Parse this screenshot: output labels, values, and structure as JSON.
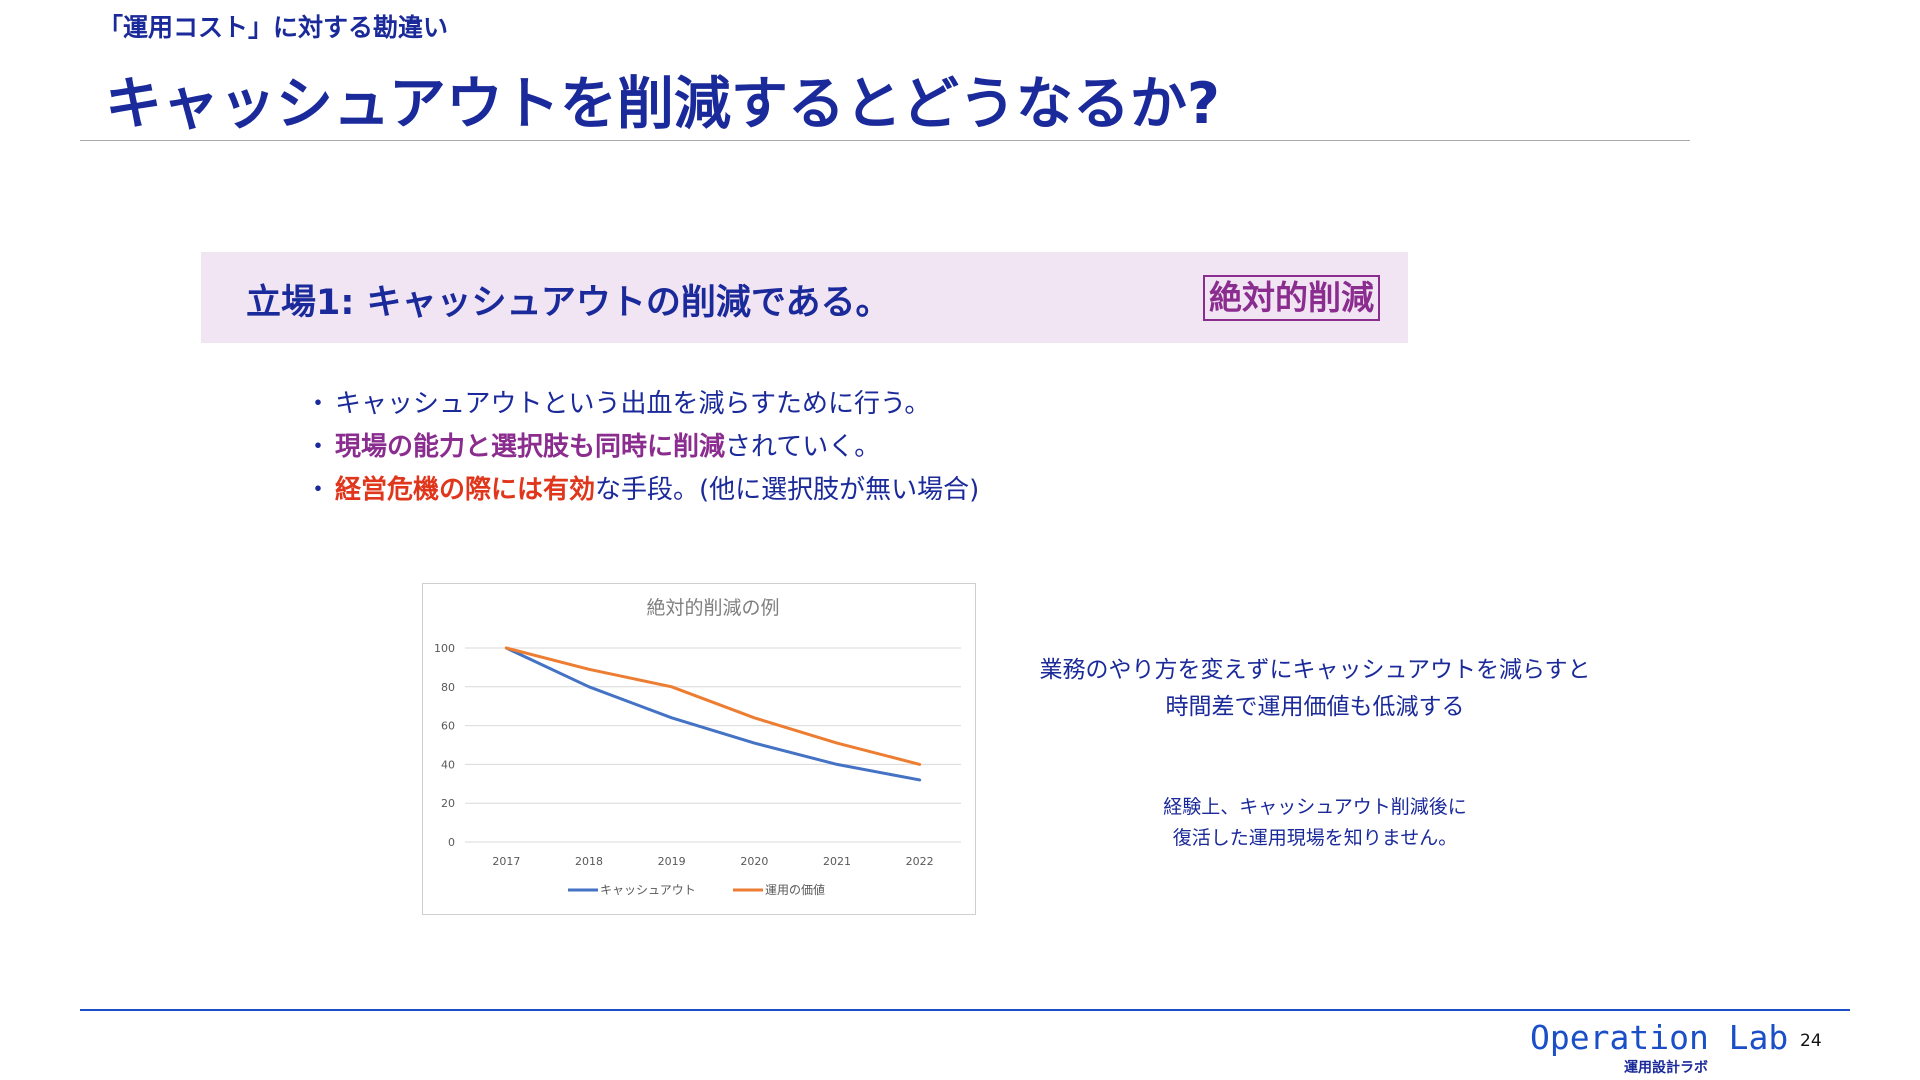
{
  "header": {
    "subtitle": "「運用コスト」に対する勘違い",
    "title": "キャッシュアウトを削減するとどうなるか?"
  },
  "banner": {
    "text": "立場1: キャッシュアウトの削減である。",
    "badge": "絶対的削減"
  },
  "bullets": [
    {
      "plain": "キャッシュアウトという出血を減らすために行う。"
    },
    {
      "highlight": "現場の能力と選択肢も同時に削減",
      "rest": "されていく。"
    },
    {
      "highlight": "経営危機の際には有効",
      "rest": "な手段。(他に選択肢が無い場合)"
    }
  ],
  "notes": {
    "note1_line1": "業務のやり方を変えずにキャッシュアウトを減らすと",
    "note1_line2": "時間差で運用価値も低減する",
    "note2_line1": "経験上、キャッシュアウト削減後に",
    "note2_line2": "復活した運用現場を知りません。"
  },
  "footer": {
    "brand": "Operation Lab",
    "brand_sub": "運用設計ラボ",
    "page": "24"
  },
  "colors": {
    "navy": "#1b2a9a",
    "purple": "#8b2c8f",
    "red": "#e0361c",
    "series_blue": "#4472c4",
    "series_orange": "#ed7d31"
  },
  "chart_data": {
    "type": "line",
    "title": "絶対的削減の例",
    "categories": [
      "2017",
      "2018",
      "2019",
      "2020",
      "2021",
      "2022"
    ],
    "series": [
      {
        "name": "キャッシュアウト",
        "values": [
          100,
          80,
          64,
          51,
          40,
          32
        ],
        "color": "#4472c4"
      },
      {
        "name": "運用の価値",
        "values": [
          100,
          89,
          80,
          64,
          51,
          40
        ],
        "color": "#ed7d31"
      }
    ],
    "yticks": [
      0,
      20,
      40,
      60,
      80,
      100
    ],
    "ylim": [
      0,
      100
    ],
    "grid": true,
    "legend": "bottom"
  }
}
